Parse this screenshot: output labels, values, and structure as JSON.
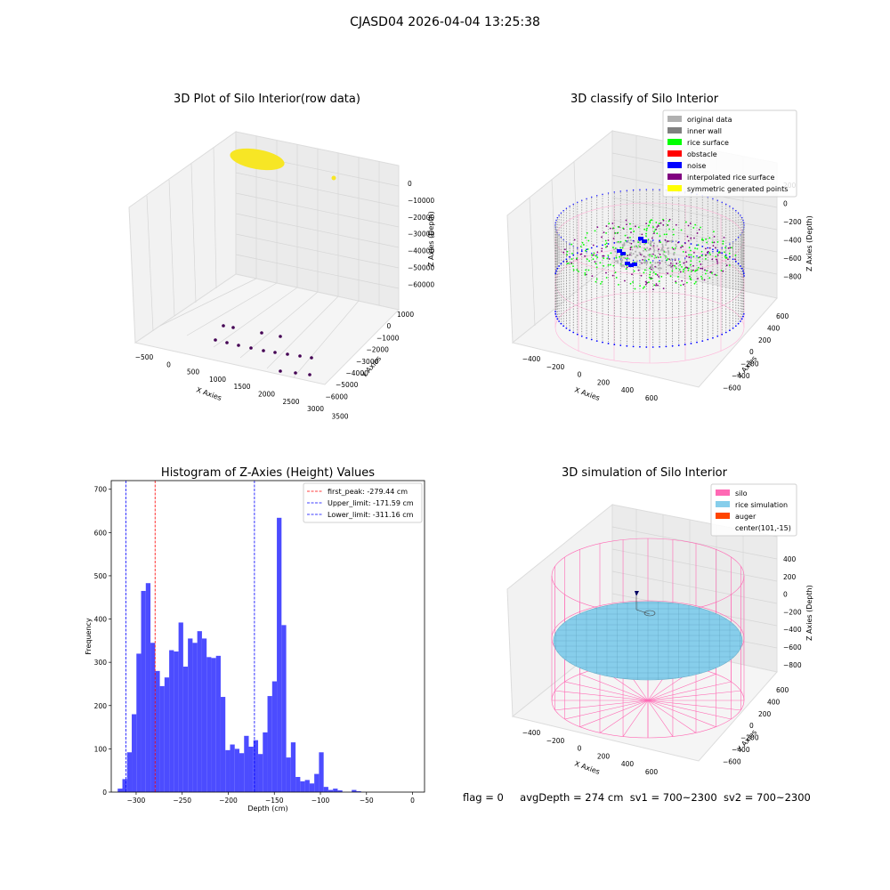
{
  "suptitle": "CJASD04 2026-04-04 13:25:38",
  "colors": {
    "yellow": "#f7e625",
    "purple": "#440154",
    "gray": "#b0b0b0",
    "darkgray": "#808080",
    "green": "#00ff00",
    "red": "#ff0000",
    "blue": "#0000ff",
    "violet": "#800080",
    "pink": "#ff69b4",
    "skyblue": "#87ceeb",
    "orange": "#ff4500",
    "hist": "#4c4cff"
  },
  "panel1": {
    "title": "3D Plot of Silo Interior(row data)",
    "xlabel": "X Axies",
    "ylabel": "Y Axies",
    "zlabel": "Z Axies (Depth)",
    "xticks": [
      "−500",
      "0",
      "500",
      "1000",
      "1500",
      "2000",
      "2500",
      "3000",
      "3500"
    ],
    "yticks": [
      "1000",
      "0",
      "−1000",
      "−2000",
      "−3000",
      "−4000",
      "−5000",
      "−6000"
    ],
    "zticks": [
      "0",
      "−10000",
      "−20000",
      "−30000",
      "−40000",
      "−50000",
      "−60000"
    ]
  },
  "panel2": {
    "title": "3D classify of Silo Interior",
    "xlabel": "X Axies",
    "ylabel": "Y Axies",
    "zlabel": "Z Axies (Depth)",
    "xticks": [
      "−400",
      "−200",
      "0",
      "200",
      "400",
      "600"
    ],
    "yticks": [
      "600",
      "400",
      "200",
      "0",
      "−200",
      "−400",
      "−600"
    ],
    "zticks": [
      "200",
      "0",
      "−200",
      "−400",
      "−600",
      "−800"
    ],
    "legend": [
      {
        "label": "original data",
        "color": "#b0b0b0"
      },
      {
        "label": "inner wall",
        "color": "#808080"
      },
      {
        "label": "rice surface",
        "color": "#00ff00"
      },
      {
        "label": "obstacle",
        "color": "#ff0000"
      },
      {
        "label": "noise",
        "color": "#0000ff"
      },
      {
        "label": "interpolated rice surface",
        "color": "#800080"
      },
      {
        "label": "symmetric generated points",
        "color": "#ffff00"
      }
    ]
  },
  "panel4": {
    "title": "3D simulation of Silo Interior",
    "xlabel": "X Axies",
    "ylabel": "Y Axies",
    "zlabel": "Z Axies (Depth)",
    "xticks": [
      "−400",
      "−200",
      "0",
      "200",
      "400",
      "600"
    ],
    "yticks": [
      "600",
      "400",
      "200",
      "0",
      "−200",
      "−400",
      "−600"
    ],
    "zticks": [
      "400",
      "200",
      "0",
      "−200",
      "−400",
      "−600",
      "−800"
    ],
    "legend": [
      {
        "label": "silo",
        "color": "#ff69b4"
      },
      {
        "label": "rice simulation",
        "color": "#87ceeb"
      },
      {
        "label": "auger",
        "color": "#ff4500"
      },
      {
        "label": "center(101,-15)",
        "color": ""
      }
    ]
  },
  "status": {
    "flag": "flag = 0",
    "avg": "avgDepth = 274 cm",
    "sv1": "sv1 = 700~2300",
    "sv2": "sv2 = 700~2300"
  },
  "chart_data": {
    "type": "bar",
    "title": "Histogram of Z-Axies (Height) Values",
    "xlabel": "Depth (cm)",
    "ylabel": "Frequency",
    "xlim": [
      -327,
      13
    ],
    "ylim": [
      0,
      720
    ],
    "xticks": [
      -300,
      -250,
      -200,
      -150,
      -100,
      -50,
      0
    ],
    "yticks": [
      0,
      100,
      200,
      300,
      400,
      500,
      600,
      700
    ],
    "bin_start": -320,
    "bin_width": 5.08,
    "values": [
      8,
      30,
      92,
      180,
      320,
      465,
      483,
      345,
      280,
      245,
      265,
      328,
      325,
      392,
      290,
      355,
      345,
      372,
      355,
      312,
      310,
      315,
      220,
      97,
      110,
      100,
      90,
      130,
      105,
      120,
      88,
      138,
      222,
      256,
      634,
      386,
      80,
      115,
      35,
      25,
      28,
      20,
      42,
      92,
      12,
      5,
      8,
      4,
      0,
      0,
      5,
      2
    ],
    "vlines": [
      {
        "x": -279.44,
        "color": "#ff0000",
        "label": "first_peak: -279.44 cm"
      },
      {
        "x": -171.59,
        "color": "#0000ff",
        "label": "Upper_limit: -171.59 cm"
      },
      {
        "x": -311.16,
        "color": "#0000ff",
        "label": "Lower_limit: -311.16 cm"
      }
    ],
    "legend_position": "upper right"
  }
}
